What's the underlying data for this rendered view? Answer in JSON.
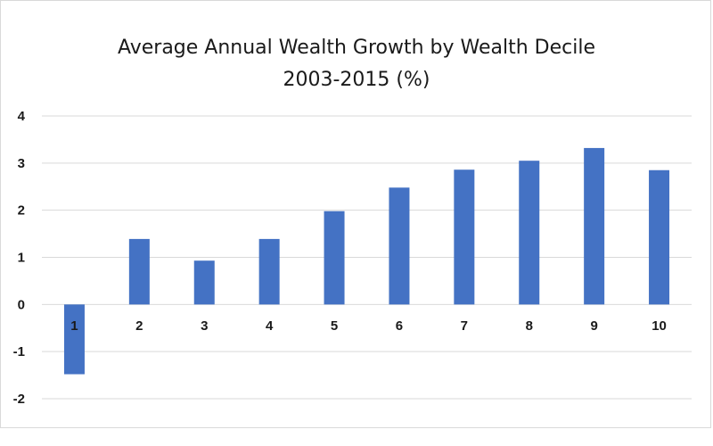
{
  "chart_data": {
    "type": "bar",
    "title": "Average Annual Wealth Growth by Wealth Decile",
    "subtitle": "2003-2015 (%)",
    "xlabel": "",
    "ylabel": "",
    "categories": [
      "1",
      "2",
      "3",
      "4",
      "5",
      "6",
      "7",
      "8",
      "9",
      "10"
    ],
    "values": [
      -1.48,
      1.39,
      0.93,
      1.39,
      1.98,
      2.48,
      2.86,
      3.05,
      3.32,
      2.85
    ],
    "ylim": [
      -2,
      4
    ],
    "yticks": [
      "-2",
      "-1",
      "0",
      "1",
      "2",
      "3",
      "4"
    ],
    "grid": true,
    "legend": "none",
    "bar_color": "#4472c4",
    "grid_color": "#d9d9d9"
  }
}
